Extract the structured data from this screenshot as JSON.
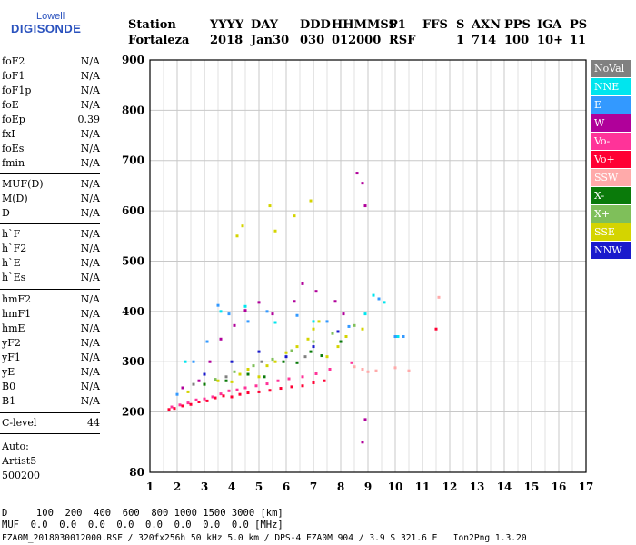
{
  "logo": {
    "top": "Lowell",
    "main": "DIGISONDE"
  },
  "header": {
    "labels": [
      "Station",
      "YYYY",
      "DAY",
      "DDD",
      "HHMMSS",
      "P1",
      "FFS",
      "S",
      "AXN",
      "PPS",
      "IGA",
      "PS"
    ],
    "values": [
      "Fortaleza",
      "2018",
      "Jan30",
      "030",
      "012000",
      "RSF",
      "",
      "1",
      "714",
      "100",
      "10+",
      "11"
    ]
  },
  "params": [
    {
      "name": "foF2",
      "value": "N/A"
    },
    {
      "name": "foF1",
      "value": "N/A"
    },
    {
      "name": "foF1p",
      "value": "N/A"
    },
    {
      "name": "foE",
      "value": "N/A"
    },
    {
      "name": "foEp",
      "value": "0.39"
    },
    {
      "name": "fxI",
      "value": "N/A"
    },
    {
      "name": "foEs",
      "value": "N/A"
    },
    {
      "name": "fmin",
      "value": "N/A"
    },
    {
      "name": "MUF(D)",
      "value": "N/A"
    },
    {
      "name": "M(D)",
      "value": "N/A"
    },
    {
      "name": "D",
      "value": "N/A"
    },
    {
      "name": "h`F",
      "value": "N/A"
    },
    {
      "name": "h`F2",
      "value": "N/A"
    },
    {
      "name": "h`E",
      "value": "N/A"
    },
    {
      "name": "h`Es",
      "value": "N/A"
    },
    {
      "name": "hmF2",
      "value": "N/A"
    },
    {
      "name": "hmF1",
      "value": "N/A"
    },
    {
      "name": "hmE",
      "value": "N/A"
    },
    {
      "name": "yF2",
      "value": "N/A"
    },
    {
      "name": "yF1",
      "value": "N/A"
    },
    {
      "name": "yE",
      "value": "N/A"
    },
    {
      "name": "B0",
      "value": "N/A"
    },
    {
      "name": "B1",
      "value": "N/A"
    },
    {
      "name": "C-level",
      "value": "44"
    }
  ],
  "autoscale": {
    "label": "Auto:",
    "program": "Artist5",
    "version": "500200"
  },
  "footer": {
    "d_row": "D     100  200  400  600  800 1000 1500 3000 [km]",
    "muf_row": "MUF  0.0  0.0  0.0  0.0  0.0  0.0  0.0  0.0 [MHz]",
    "file_line": "FZA0M_2018030012000.RSF / 320fx256h 50 kHz 5.0 km / DPS-4 FZA0M 904 / 3.9 S 321.6 E   Ion2Png 1.3.20"
  },
  "legend": [
    {
      "label": "NoVal",
      "color": "#808080"
    },
    {
      "label": "NNE",
      "color": "#00e5ee"
    },
    {
      "label": "E",
      "color": "#3399ff"
    },
    {
      "label": "W",
      "color": "#b0009a"
    },
    {
      "label": "Vo-",
      "color": "#ff3399"
    },
    {
      "label": "Vo+",
      "color": "#ff0033"
    },
    {
      "label": "SSW",
      "color": "#ffaaaa"
    },
    {
      "label": "X-",
      "color": "#0a7a0a"
    },
    {
      "label": "X+",
      "color": "#7fbf5a"
    },
    {
      "label": "SSE",
      "color": "#d4d400"
    },
    {
      "label": "NNW",
      "color": "#1a1acc"
    }
  ],
  "chart_data": {
    "type": "scatter",
    "xlabel": "",
    "ylabel": "",
    "xlim": [
      1,
      17
    ],
    "ylim": [
      80,
      900
    ],
    "x_ticks": [
      1,
      2,
      3,
      4,
      5,
      6,
      7,
      8,
      9,
      10,
      11,
      12,
      13,
      14,
      15,
      16,
      17
    ],
    "y_ticks": [
      80,
      200,
      300,
      400,
      500,
      600,
      700,
      800,
      900
    ],
    "grid": true,
    "series": [
      {
        "name": "Vo+",
        "color": "#ff0033",
        "points": [
          [
            1.7,
            205
          ],
          [
            1.9,
            207
          ],
          [
            2.2,
            212
          ],
          [
            2.5,
            215
          ],
          [
            2.8,
            220
          ],
          [
            3.1,
            222
          ],
          [
            3.4,
            228
          ],
          [
            3.7,
            232
          ],
          [
            4.0,
            230
          ],
          [
            4.3,
            235
          ],
          [
            4.6,
            238
          ],
          [
            5.0,
            240
          ],
          [
            5.4,
            243
          ],
          [
            5.8,
            247
          ],
          [
            6.2,
            250
          ],
          [
            6.6,
            252
          ],
          [
            7.0,
            258
          ],
          [
            7.4,
            262
          ],
          [
            11.5,
            365
          ]
        ]
      },
      {
        "name": "Vo-",
        "color": "#ff3399",
        "points": [
          [
            1.8,
            210
          ],
          [
            2.1,
            214
          ],
          [
            2.4,
            218
          ],
          [
            2.7,
            224
          ],
          [
            3.0,
            226
          ],
          [
            3.3,
            230
          ],
          [
            3.6,
            236
          ],
          [
            3.9,
            242
          ],
          [
            4.2,
            244
          ],
          [
            4.5,
            248
          ],
          [
            4.9,
            252
          ],
          [
            5.3,
            256
          ],
          [
            5.7,
            262
          ],
          [
            6.1,
            266
          ],
          [
            6.6,
            270
          ],
          [
            7.1,
            276
          ],
          [
            7.6,
            285
          ],
          [
            8.4,
            298
          ]
        ]
      },
      {
        "name": "SSE",
        "color": "#d4d400",
        "points": [
          [
            2.4,
            240
          ],
          [
            3.0,
            255
          ],
          [
            3.5,
            262
          ],
          [
            4.0,
            260
          ],
          [
            4.3,
            275
          ],
          [
            4.6,
            285
          ],
          [
            5.0,
            270
          ],
          [
            5.3,
            292
          ],
          [
            5.6,
            300
          ],
          [
            6.0,
            318
          ],
          [
            6.4,
            330
          ],
          [
            6.8,
            345
          ],
          [
            7.0,
            365
          ],
          [
            7.2,
            380
          ],
          [
            7.5,
            310
          ],
          [
            7.9,
            330
          ],
          [
            8.2,
            350
          ],
          [
            8.8,
            365
          ],
          [
            4.2,
            550
          ],
          [
            4.4,
            570
          ],
          [
            5.4,
            610
          ],
          [
            5.6,
            560
          ],
          [
            6.3,
            590
          ],
          [
            6.9,
            620
          ]
        ]
      },
      {
        "name": "X-",
        "color": "#0a7a0a",
        "points": [
          [
            3.0,
            255
          ],
          [
            3.8,
            262
          ],
          [
            4.6,
            275
          ],
          [
            5.2,
            270
          ],
          [
            5.9,
            300
          ],
          [
            6.4,
            298
          ],
          [
            6.9,
            320
          ],
          [
            7.3,
            312
          ],
          [
            8.0,
            340
          ]
        ]
      },
      {
        "name": "X+",
        "color": "#7fbf5a",
        "points": [
          [
            3.4,
            265
          ],
          [
            4.1,
            280
          ],
          [
            4.8,
            292
          ],
          [
            5.5,
            305
          ],
          [
            6.2,
            322
          ],
          [
            7.0,
            340
          ],
          [
            7.7,
            356
          ],
          [
            8.5,
            372
          ]
        ]
      },
      {
        "name": "W",
        "color": "#b0009a",
        "points": [
          [
            2.2,
            248
          ],
          [
            2.8,
            262
          ],
          [
            3.2,
            300
          ],
          [
            3.6,
            345
          ],
          [
            4.1,
            372
          ],
          [
            4.5,
            402
          ],
          [
            5.0,
            418
          ],
          [
            5.5,
            395
          ],
          [
            6.3,
            420
          ],
          [
            6.6,
            455
          ],
          [
            7.1,
            440
          ],
          [
            7.8,
            420
          ],
          [
            8.1,
            395
          ],
          [
            8.6,
            675
          ],
          [
            8.8,
            655
          ],
          [
            8.9,
            610
          ],
          [
            8.9,
            185
          ],
          [
            8.8,
            140
          ]
        ]
      },
      {
        "name": "E",
        "color": "#3399ff",
        "points": [
          [
            2.0,
            235
          ],
          [
            2.6,
            300
          ],
          [
            3.1,
            340
          ],
          [
            3.5,
            412
          ],
          [
            3.9,
            395
          ],
          [
            4.6,
            380
          ],
          [
            5.3,
            400
          ],
          [
            6.4,
            392
          ],
          [
            7.5,
            380
          ],
          [
            8.3,
            370
          ],
          [
            9.4,
            425
          ],
          [
            10.0,
            350
          ],
          [
            10.3,
            350
          ]
        ]
      },
      {
        "name": "NNE",
        "color": "#00e5ee",
        "points": [
          [
            2.3,
            300
          ],
          [
            3.6,
            400
          ],
          [
            4.5,
            410
          ],
          [
            5.6,
            378
          ],
          [
            7.0,
            380
          ],
          [
            8.9,
            395
          ],
          [
            9.2,
            432
          ],
          [
            9.6,
            418
          ],
          [
            10.1,
            350
          ]
        ]
      },
      {
        "name": "SSW",
        "color": "#ffaaaa",
        "points": [
          [
            8.5,
            290
          ],
          [
            8.8,
            285
          ],
          [
            9.0,
            280
          ],
          [
            9.3,
            282
          ],
          [
            10.0,
            288
          ],
          [
            10.5,
            282
          ],
          [
            11.6,
            428
          ]
        ]
      },
      {
        "name": "NNW",
        "color": "#1a1acc",
        "points": [
          [
            3.0,
            275
          ],
          [
            4.0,
            300
          ],
          [
            5.0,
            320
          ],
          [
            6.0,
            310
          ],
          [
            7.0,
            330
          ],
          [
            7.9,
            360
          ]
        ]
      },
      {
        "name": "NoVal",
        "color": "#808080",
        "points": [
          [
            2.6,
            255
          ],
          [
            3.8,
            270
          ],
          [
            5.1,
            300
          ],
          [
            6.7,
            310
          ]
        ]
      }
    ]
  }
}
